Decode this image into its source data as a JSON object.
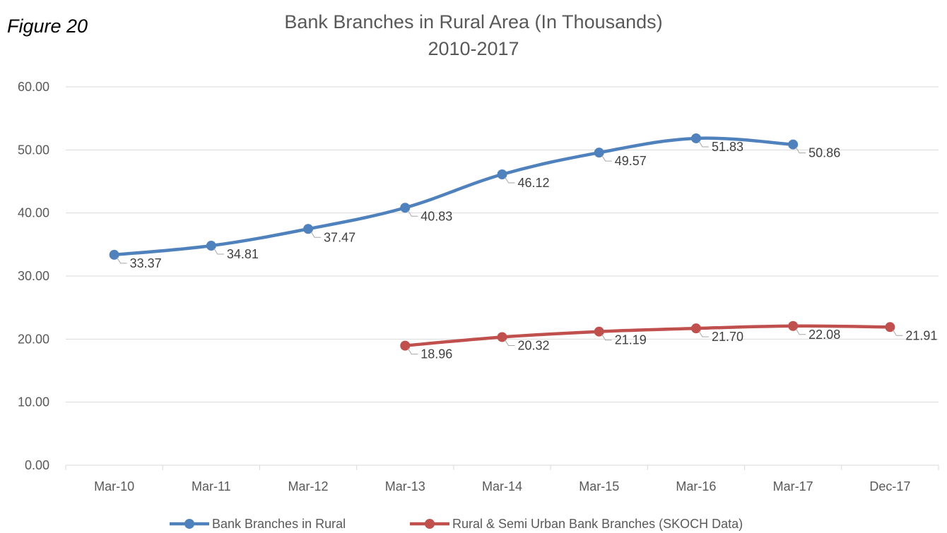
{
  "figure_label": "Figure 20",
  "chart_data": {
    "type": "line",
    "title": "Bank Branches in Rural Area (In Thousands)",
    "subtitle": "2010-2017",
    "categories": [
      "Mar-10",
      "Mar-11",
      "Mar-12",
      "Mar-13",
      "Mar-14",
      "Mar-15",
      "Mar-16",
      "Mar-17",
      "Dec-17"
    ],
    "y_ticks": [
      "0.00",
      "10.00",
      "20.00",
      "30.00",
      "40.00",
      "50.00",
      "60.00"
    ],
    "ylim": [
      0,
      60
    ],
    "grid": true,
    "legend_position": "bottom",
    "series": [
      {
        "name": "Bank Branches in Rural",
        "color": "#4F81BD",
        "values": [
          33.37,
          34.81,
          37.47,
          40.83,
          46.12,
          49.57,
          51.83,
          50.86,
          null
        ],
        "labels": [
          "33.37",
          "34.81",
          "37.47",
          "40.83",
          "46.12",
          "49.57",
          "51.83",
          "50.86",
          null
        ]
      },
      {
        "name": "Rural & Semi Urban Bank Branches (SKOCH Data)",
        "color": "#C0504D",
        "values": [
          null,
          null,
          null,
          18.96,
          20.32,
          21.19,
          21.7,
          22.08,
          21.91
        ],
        "labels": [
          null,
          null,
          null,
          "18.96",
          "20.32",
          "21.19",
          "21.70",
          "22.08",
          "21.91"
        ]
      }
    ]
  }
}
